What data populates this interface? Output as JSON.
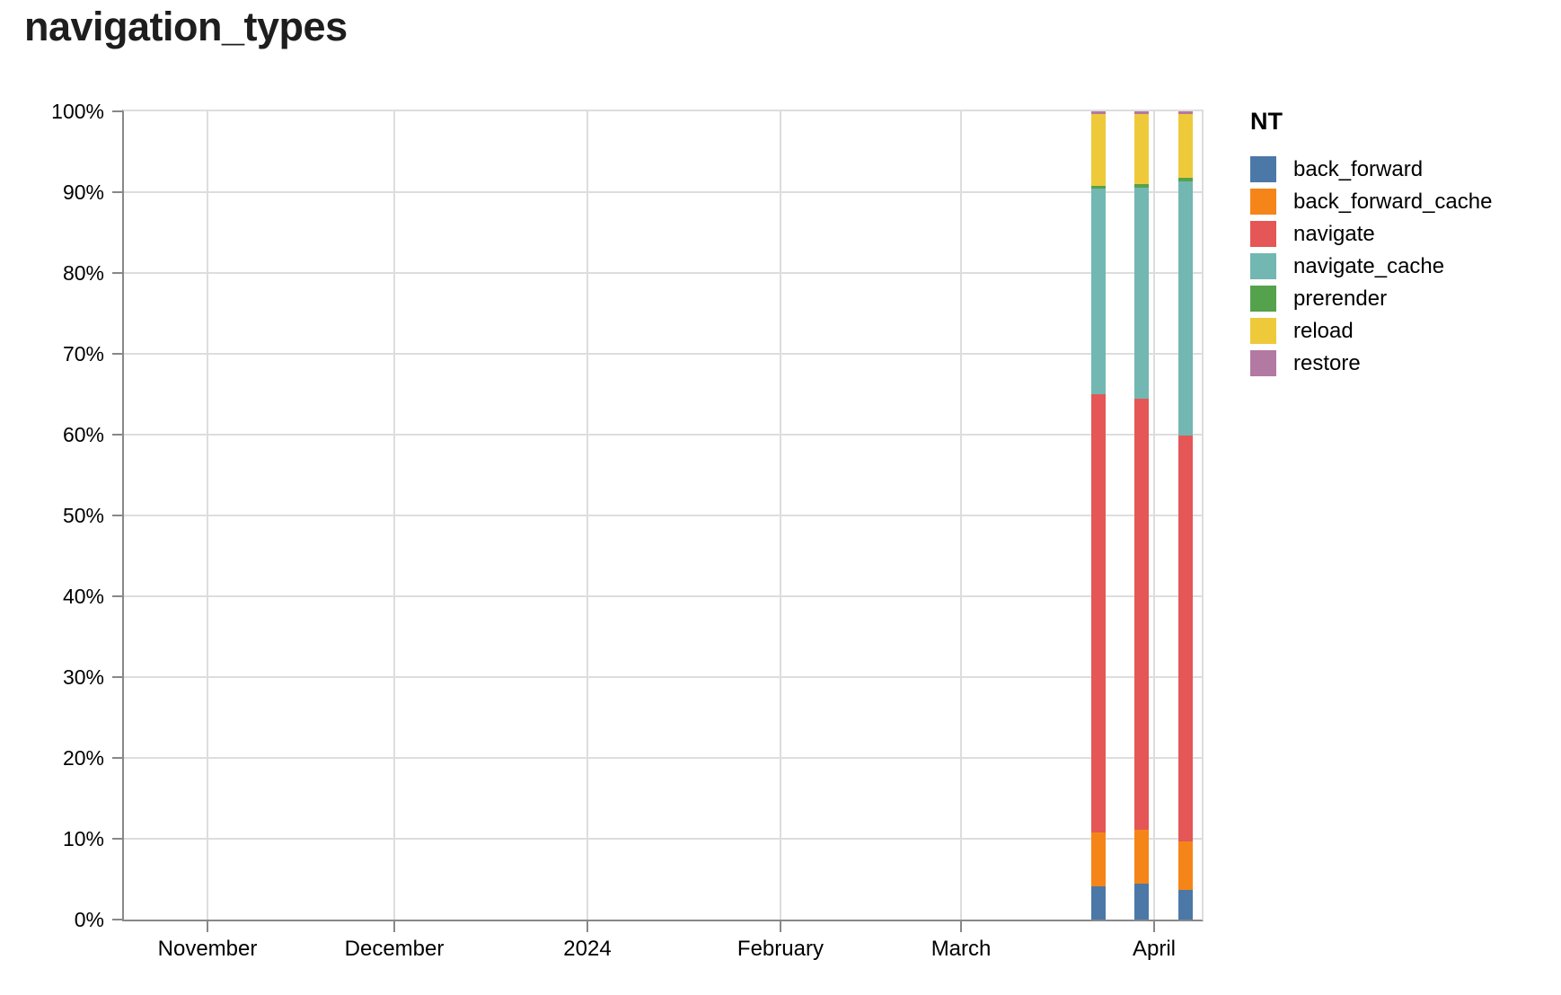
{
  "title": "navigation_types",
  "legend": {
    "title": "NT",
    "items": [
      {
        "label": "back_forward",
        "color": "#4c78a8"
      },
      {
        "label": "back_forward_cache",
        "color": "#f58518"
      },
      {
        "label": "navigate",
        "color": "#e45756"
      },
      {
        "label": "navigate_cache",
        "color": "#72b7b2"
      },
      {
        "label": "prerender",
        "color": "#54a24b"
      },
      {
        "label": "reload",
        "color": "#eeca3b"
      },
      {
        "label": "restore",
        "color": "#b279a2"
      }
    ]
  },
  "chart_data": {
    "type": "bar",
    "stacked": true,
    "normalized": true,
    "title": "navigation_types",
    "xlabel": "",
    "ylabel": "",
    "grid": true,
    "legend_position": "right",
    "x_axis": {
      "type": "time",
      "domain": [
        "2023-10-18",
        "2024-04-09"
      ],
      "ticks": [
        {
          "date": "2023-11-01",
          "label": "November"
        },
        {
          "date": "2023-12-01",
          "label": "December"
        },
        {
          "date": "2024-01-01",
          "label": "2024"
        },
        {
          "date": "2024-02-01",
          "label": "February"
        },
        {
          "date": "2024-03-01",
          "label": "March"
        },
        {
          "date": "2024-04-01",
          "label": "April"
        }
      ]
    },
    "y_axis": {
      "min": 0,
      "max": 100,
      "step": 10,
      "unit": "%",
      "tick_labels": [
        "0%",
        "10%",
        "20%",
        "30%",
        "40%",
        "50%",
        "60%",
        "70%",
        "80%",
        "90%",
        "100%"
      ]
    },
    "series_order": [
      "back_forward",
      "back_forward_cache",
      "navigate",
      "navigate_cache",
      "prerender",
      "reload",
      "restore"
    ],
    "colors": {
      "back_forward": "#4c78a8",
      "back_forward_cache": "#f58518",
      "navigate": "#e45756",
      "navigate_cache": "#72b7b2",
      "prerender": "#54a24b",
      "reload": "#eeca3b",
      "restore": "#b279a2"
    },
    "bars": [
      {
        "week_ending": "2024-03-23",
        "values": {
          "back_forward": 4.1,
          "back_forward_cache": 6.7,
          "navigate": 54.2,
          "navigate_cache": 25.4,
          "prerender": 0.4,
          "reload": 8.9,
          "restore": 0.3
        }
      },
      {
        "week_ending": "2024-03-30",
        "values": {
          "back_forward": 4.4,
          "back_forward_cache": 6.7,
          "navigate": 53.3,
          "navigate_cache": 26.2,
          "prerender": 0.4,
          "reload": 8.7,
          "restore": 0.3
        }
      },
      {
        "week_ending": "2024-04-06",
        "values": {
          "back_forward": 3.7,
          "back_forward_cache": 6.0,
          "navigate": 50.2,
          "navigate_cache": 31.4,
          "prerender": 0.5,
          "reload": 7.9,
          "restore": 0.3
        }
      }
    ]
  }
}
